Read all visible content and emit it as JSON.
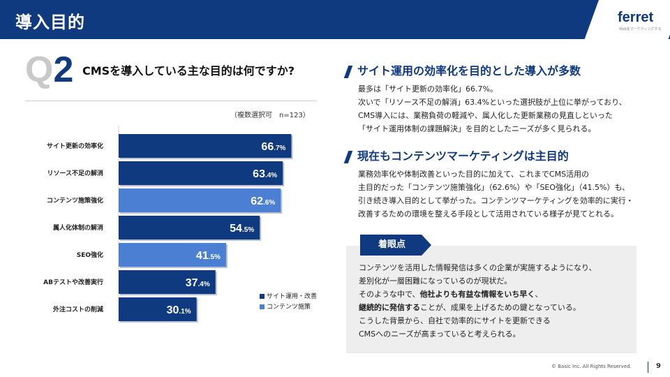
{
  "header": {
    "title": "導入目的",
    "logo": "ferret",
    "logo_tagline": "Webをマーケティングする"
  },
  "question": {
    "q": "Q",
    "num": "2",
    "text": "CMSを導入している主な目的は何ですか?",
    "note": "（複数選択可　n=123）"
  },
  "chart_data": {
    "type": "bar",
    "orientation": "horizontal",
    "categories": [
      "サイト更新の効率化",
      "リソース不足の解消",
      "コンテンツ施策強化",
      "属人化体制の解消",
      "SEO強化",
      "ABテストや改善実行",
      "外注コストの削減"
    ],
    "values": [
      66.7,
      63.4,
      62.6,
      54.5,
      41.5,
      37.4,
      30.1
    ],
    "value_labels": [
      {
        "int": "66",
        "dec": ".7%"
      },
      {
        "int": "63",
        "dec": ".4%"
      },
      {
        "int": "62",
        "dec": ".6%"
      },
      {
        "int": "54",
        "dec": ".5%"
      },
      {
        "int": "41",
        "dec": ".5%"
      },
      {
        "int": "37",
        "dec": ".4%"
      },
      {
        "int": "30",
        "dec": ".1%"
      }
    ],
    "groups": [
      "site",
      "site",
      "content",
      "site",
      "content",
      "site",
      "site"
    ],
    "legend": [
      {
        "key": "site",
        "label": "サイト運用・改善",
        "color": "#0f3a80"
      },
      {
        "key": "content",
        "label": "コンテンツ施策",
        "color": "#4a7fd4"
      }
    ],
    "xlim": [
      0,
      100
    ]
  },
  "sections": [
    {
      "heading": "サイト運用の効率化を目的とした導入が多数",
      "lines": [
        "最多は「サイト更新の効率化」66.7%。",
        "次いで「リソース不足の解消」63.4%といった選択肢が上位に挙がっており、",
        "CMS導入には、業務負荷の軽減や、属人化した更新業務の見直しといった",
        "「サイト運用体制の課題解決」を目的としたニーズが多く見られる。"
      ]
    },
    {
      "heading": "現在もコンテンツマーケティングは主目的",
      "lines": [
        "業務効率化や体制改善といった目的に加えて、これまでCMS活用の",
        "主目的だった「コンテンツ施策強化」（62.6%）や「SEO強化」（41.5%）も、",
        "引き続き導入目的として挙がった。コンテンツマーケティングを効率的に実行・",
        "改善するための環境を整える手段として活用されている様子が見てとれる。"
      ]
    }
  ],
  "focus": {
    "tag": "着眼点",
    "line1": "コンテンツを活用した情報発信は多くの企業が実施するようになり、",
    "line2": "差別化が一層困難になっているのが現状だ。",
    "line3a": "そのような中で、",
    "line3b": "他社よりも有益な情報をいち早く",
    "line3c": "、",
    "line4a": "継続的に発信する",
    "line4b": "ことが、成果を上げるための鍵となっている。",
    "line5": "こうした背景から、自社で効率的にサイトを更新できる",
    "line6": "CMSへのニーズが高まっていると考えられる。"
  },
  "footer": {
    "copyright": "© Basic Inc. All Rights Reserved.",
    "page": "9"
  }
}
